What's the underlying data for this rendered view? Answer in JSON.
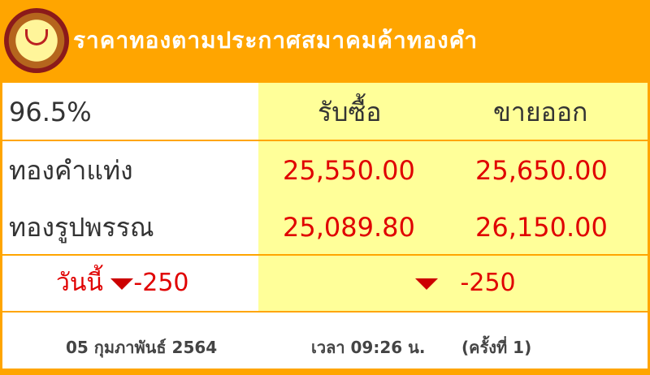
{
  "header": {
    "title": "ราคาทองตามประกาศสมาคมค้าทองคำ",
    "logo_icon": "gold-traders-association-logo"
  },
  "table": {
    "purity": "96.5%",
    "buy_label": "รับซื้อ",
    "sell_label": "ขายออก",
    "rows": [
      {
        "name": "ทองคำแท่ง",
        "buy": "25,550.00",
        "sell": "25,650.00"
      },
      {
        "name": "ทองรูปพรรณ",
        "buy": "25,089.80",
        "sell": "26,150.00"
      }
    ],
    "today_label": "วันนี้",
    "today_change": "-250",
    "change_right": "-250"
  },
  "footer": {
    "date": "05 กุมภาพันธ์ 2564",
    "time": "เวลา 09:26 น.",
    "round": "(ครั้งที่ 1)"
  },
  "colors": {
    "accent": "#ffa500",
    "price": "#e00000",
    "highlight": "#ffff99"
  }
}
